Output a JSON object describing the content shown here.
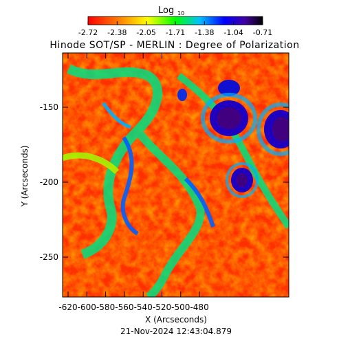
{
  "colorbar": {
    "title": "Log",
    "title_sub": "10",
    "ticks": [
      "-2.72",
      "-2.38",
      "-2.05",
      "-1.71",
      "-1.38",
      "-1.04",
      "-0.71"
    ]
  },
  "plot": {
    "title": "Hinode SOT/SP - MERLIN : Degree of Polarization",
    "xlabel": "X (Arcseconds)",
    "ylabel": "Y (Arcseconds)",
    "x_ticks": [
      "-620",
      "-600",
      "-580",
      "-560",
      "-540",
      "-520",
      "-500",
      "-480"
    ],
    "y_ticks": [
      "-150",
      "-200",
      "-250"
    ],
    "timestamp": "21-Nov-2024 12:43:04.879"
  },
  "colors": {
    "colormap": [
      "#ff0000",
      "#ff8000",
      "#ffff00",
      "#00ff00",
      "#00c0ff",
      "#0000ff",
      "#4000a0",
      "#000000"
    ]
  }
}
